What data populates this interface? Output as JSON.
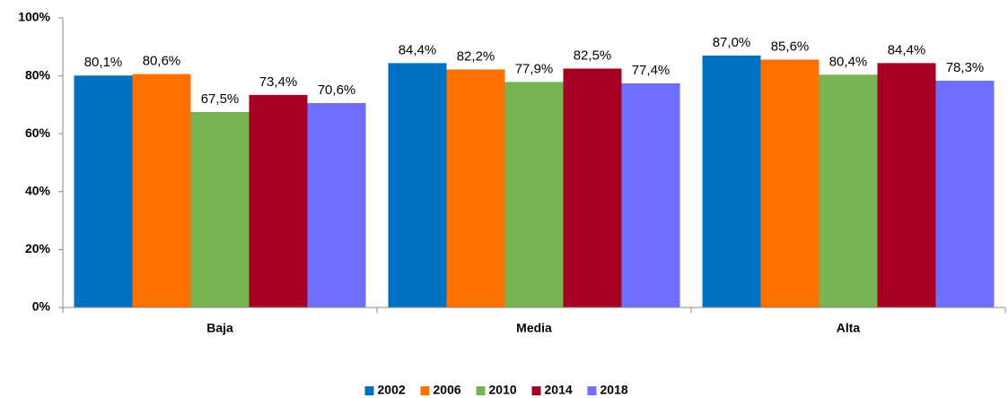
{
  "chart_data": {
    "type": "bar",
    "categories": [
      "Baja",
      "Media",
      "Alta"
    ],
    "series": [
      {
        "name": "2002",
        "color": "#0070c0",
        "values": [
          80.1,
          84.4,
          87.0
        ],
        "value_labels": [
          "80,1%",
          "84,4%",
          "87,0%"
        ]
      },
      {
        "name": "2006",
        "color": "#ff7000",
        "values": [
          80.6,
          82.2,
          85.6
        ],
        "value_labels": [
          "80,6%",
          "82,2%",
          "85,6%"
        ]
      },
      {
        "name": "2010",
        "color": "#77b552",
        "values": [
          67.5,
          77.9,
          80.4
        ],
        "value_labels": [
          "67,5%",
          "77,9%",
          "80,4%"
        ]
      },
      {
        "name": "2014",
        "color": "#a50021",
        "values": [
          73.4,
          82.5,
          84.4
        ],
        "value_labels": [
          "73,4%",
          "82,5%",
          "84,4%"
        ]
      },
      {
        "name": "2018",
        "color": "#6f6fff",
        "values": [
          70.6,
          77.4,
          78.3
        ],
        "value_labels": [
          "70,6%",
          "77,4%",
          "78,3%"
        ]
      }
    ],
    "ylim": [
      0,
      100
    ],
    "yticks": [
      {
        "value": 0,
        "label": "0%"
      },
      {
        "value": 20,
        "label": "20%"
      },
      {
        "value": 40,
        "label": "40%"
      },
      {
        "value": 60,
        "label": "60%"
      },
      {
        "value": 80,
        "label": "80%"
      },
      {
        "value": 100,
        "label": "100%"
      }
    ],
    "grid": false,
    "legend": "bottom"
  }
}
